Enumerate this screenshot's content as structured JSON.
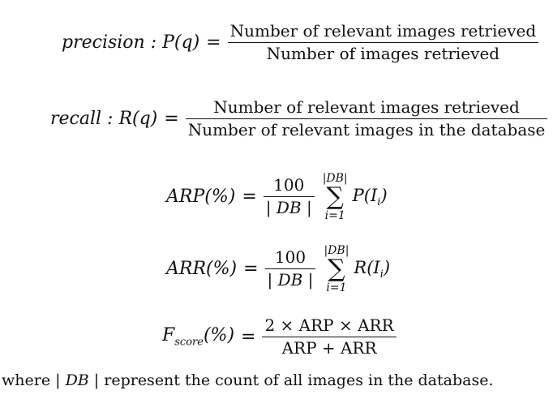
{
  "precision": {
    "lhs_name": "precision",
    "lhs_rest": " : P(q)",
    "eq": "=",
    "numerator": "Number of relevant images retrieved",
    "denominator": "Number of images retrieved"
  },
  "recall": {
    "lhs_name": "recall",
    "lhs_rest": " : R(q)",
    "eq": "=",
    "numerator": "Number of relevant images retrieved",
    "denominator": "Number of relevant images in the database"
  },
  "arp": {
    "lhs": "ARP(%)",
    "eq": "=",
    "numerator": "100",
    "denominator": "| DB |",
    "sum_upper": "|DB|",
    "sum_symbol": "∑",
    "sum_lower": "i=1",
    "term": "P(I",
    "term_sub": "i",
    "term_close": ")"
  },
  "arr": {
    "lhs": "ARR(%)",
    "eq": "=",
    "numerator": "100",
    "denominator": "| DB |",
    "sum_upper": "|DB|",
    "sum_symbol": "∑",
    "sum_lower": "i=1",
    "term": "R(I",
    "term_sub": "i",
    "term_close": ")"
  },
  "fscore": {
    "lhs_main": "F",
    "lhs_sub": "score",
    "lhs_rest": "(%)",
    "eq": "=",
    "numerator": "2 × ARP × ARR",
    "denominator": "ARP + ARR"
  },
  "footnote": {
    "prefix": "where | ",
    "db": "DB",
    "suffix": " | represent the count of all images in the database."
  }
}
